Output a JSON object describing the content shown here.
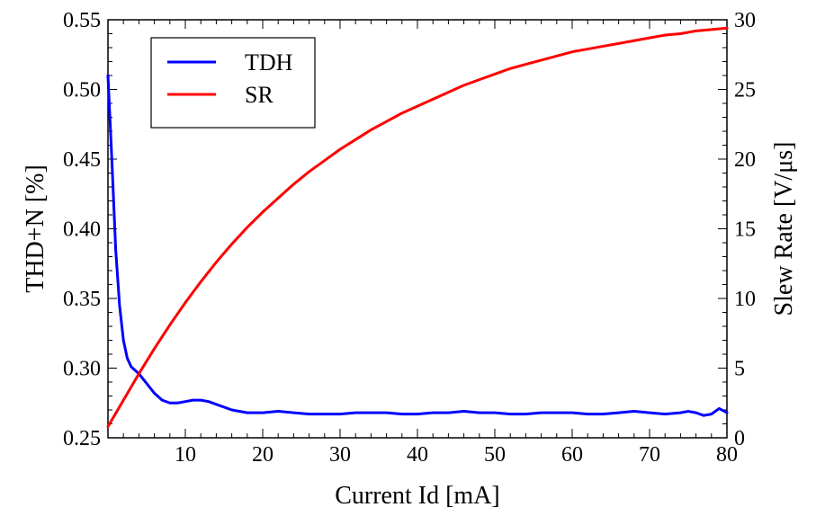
{
  "chart_data": {
    "type": "line",
    "xlabel": "Current Id [mA]",
    "ylabel_left": "THD+N [%]",
    "ylabel_right": "Slew Rate [V/μs]",
    "xlim": [
      0,
      80
    ],
    "ylim_left": [
      0.25,
      0.55
    ],
    "ylim_right": [
      0,
      30
    ],
    "x_ticks": [
      "10",
      "20",
      "30",
      "40",
      "50",
      "60",
      "70",
      "80"
    ],
    "x_tick_values": [
      10,
      20,
      30,
      40,
      50,
      60,
      70,
      80
    ],
    "y_left_ticks": [
      "0.25",
      "0.30",
      "0.35",
      "0.40",
      "0.45",
      "0.50",
      "0.55"
    ],
    "y_left_tick_values": [
      0.25,
      0.3,
      0.35,
      0.4,
      0.45,
      0.5,
      0.55
    ],
    "y_right_ticks": [
      "0",
      "5",
      "10",
      "15",
      "20",
      "25",
      "30"
    ],
    "y_right_tick_values": [
      0,
      5,
      10,
      15,
      20,
      25,
      30
    ],
    "grid": false,
    "legend": "top-left",
    "series": [
      {
        "name": "TDH",
        "axis": "left",
        "color": "#0000ff",
        "x": [
          0,
          0.5,
          1,
          1.5,
          2,
          2.5,
          3,
          4,
          5,
          6,
          7,
          8,
          9,
          10,
          11,
          12,
          13,
          14,
          15,
          16,
          18,
          20,
          22,
          24,
          26,
          28,
          30,
          32,
          34,
          36,
          38,
          40,
          42,
          44,
          46,
          48,
          50,
          52,
          54,
          56,
          58,
          60,
          62,
          64,
          66,
          68,
          70,
          72,
          74,
          75,
          76,
          77,
          78,
          79,
          80
        ],
        "y": [
          0.51,
          0.45,
          0.385,
          0.345,
          0.32,
          0.307,
          0.301,
          0.296,
          0.289,
          0.282,
          0.277,
          0.275,
          0.275,
          0.276,
          0.277,
          0.277,
          0.276,
          0.274,
          0.272,
          0.27,
          0.268,
          0.268,
          0.269,
          0.268,
          0.267,
          0.267,
          0.267,
          0.268,
          0.268,
          0.268,
          0.267,
          0.267,
          0.268,
          0.268,
          0.269,
          0.268,
          0.268,
          0.267,
          0.267,
          0.268,
          0.268,
          0.268,
          0.267,
          0.267,
          0.268,
          0.269,
          0.268,
          0.267,
          0.268,
          0.269,
          0.268,
          0.266,
          0.267,
          0.271,
          0.268
        ]
      },
      {
        "name": "SR",
        "axis": "right",
        "color": "#ff0000",
        "x": [
          0,
          2,
          4,
          6,
          8,
          10,
          12,
          14,
          16,
          18,
          20,
          22,
          24,
          26,
          28,
          30,
          32,
          34,
          36,
          38,
          40,
          42,
          44,
          46,
          48,
          50,
          52,
          54,
          56,
          58,
          60,
          62,
          64,
          66,
          68,
          70,
          72,
          74,
          76,
          78,
          80
        ],
        "y": [
          0.8,
          2.7,
          4.6,
          6.4,
          8.1,
          9.7,
          11.2,
          12.6,
          13.9,
          15.1,
          16.2,
          17.2,
          18.2,
          19.1,
          19.9,
          20.7,
          21.4,
          22.1,
          22.7,
          23.3,
          23.8,
          24.3,
          24.8,
          25.3,
          25.7,
          26.1,
          26.5,
          26.8,
          27.1,
          27.4,
          27.7,
          27.9,
          28.1,
          28.3,
          28.5,
          28.7,
          28.9,
          29.0,
          29.2,
          29.3,
          29.4
        ]
      }
    ]
  }
}
